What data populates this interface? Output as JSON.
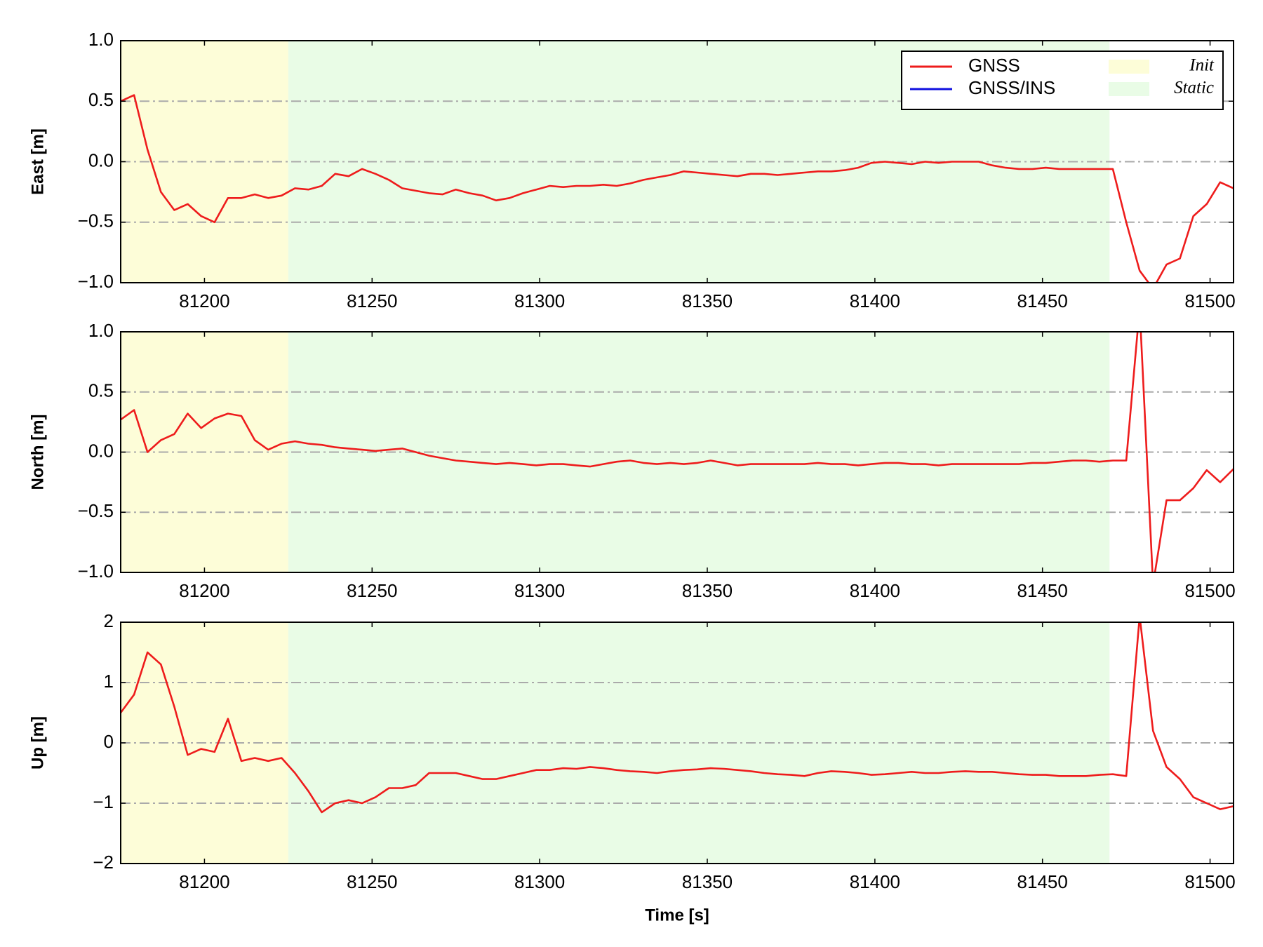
{
  "x": [
    81175,
    81179,
    81183,
    81187,
    81191,
    81195,
    81199,
    81203,
    81207,
    81211,
    81215,
    81219,
    81223,
    81227,
    81231,
    81235,
    81239,
    81243,
    81247,
    81251,
    81255,
    81259,
    81263,
    81267,
    81271,
    81275,
    81279,
    81283,
    81287,
    81291,
    81295,
    81299,
    81303,
    81307,
    81311,
    81315,
    81319,
    81323,
    81327,
    81331,
    81335,
    81339,
    81343,
    81347,
    81351,
    81355,
    81359,
    81363,
    81367,
    81371,
    81375,
    81379,
    81383,
    81387,
    81391,
    81395,
    81399,
    81403,
    81407,
    81411,
    81415,
    81419,
    81423,
    81427,
    81431,
    81435,
    81439,
    81443,
    81447,
    81451,
    81455,
    81459,
    81463,
    81467,
    81471,
    81475,
    81479,
    81483,
    81487,
    81491,
    81495,
    81499,
    81503,
    81507
  ],
  "xlabel": "Time [s]",
  "legend_lines": [
    {
      "name": "GNSS",
      "color": "#ee1c1c"
    },
    {
      "name": "GNSS/INS",
      "color": "#1010e0"
    }
  ],
  "regions": [
    {
      "name": "Init",
      "color": "#fdfdd8",
      "xrange": [
        81175,
        81225
      ]
    },
    {
      "name": "Static",
      "color": "#e9fce6",
      "xrange": [
        81225,
        81470
      ]
    }
  ],
  "chart_data": [
    {
      "type": "line",
      "ylabel": "East [m]",
      "xlim": [
        81175,
        81507
      ],
      "xticks": [
        81200,
        81250,
        81300,
        81350,
        81400,
        81450,
        81500
      ],
      "ylim": [
        -1,
        1
      ],
      "yticks": [
        {
          "value": -1,
          "label": "−1.0"
        },
        {
          "value": -0.5,
          "label": "−0.5"
        },
        {
          "value": 0,
          "label": "0.0"
        },
        {
          "value": 0.5,
          "label": "0.5"
        },
        {
          "value": 1,
          "label": "1.0"
        }
      ],
      "grid": true,
      "values": [
        0.5,
        0.55,
        0.1,
        -0.25,
        -0.4,
        -0.35,
        -0.45,
        -0.5,
        -0.3,
        -0.3,
        -0.27,
        -0.3,
        -0.28,
        -0.22,
        -0.23,
        -0.2,
        -0.1,
        -0.12,
        -0.06,
        -0.1,
        -0.15,
        -0.22,
        -0.24,
        -0.26,
        -0.27,
        -0.23,
        -0.26,
        -0.28,
        -0.32,
        -0.3,
        -0.26,
        -0.23,
        -0.2,
        -0.21,
        -0.2,
        -0.2,
        -0.19,
        -0.2,
        -0.18,
        -0.15,
        -0.13,
        -0.11,
        -0.08,
        -0.09,
        -0.1,
        -0.11,
        -0.12,
        -0.1,
        -0.1,
        -0.11,
        -0.1,
        -0.09,
        -0.08,
        -0.08,
        -0.07,
        -0.05,
        -0.01,
        0.0,
        -0.01,
        -0.02,
        0.0,
        -0.01,
        0.0,
        0.0,
        0.0,
        -0.03,
        -0.05,
        -0.06,
        -0.06,
        -0.05,
        -0.06,
        -0.06,
        -0.06,
        -0.06,
        -0.06,
        -0.5,
        -0.9,
        -1.05,
        -0.85,
        -0.8,
        -0.45,
        -0.35,
        -0.17,
        -0.22
      ]
    },
    {
      "type": "line",
      "ylabel": "North [m]",
      "xlim": [
        81175,
        81507
      ],
      "xticks": [
        81200,
        81250,
        81300,
        81350,
        81400,
        81450,
        81500
      ],
      "ylim": [
        -1,
        1
      ],
      "yticks": [
        {
          "value": -1,
          "label": "−1.0"
        },
        {
          "value": -0.5,
          "label": "−0.5"
        },
        {
          "value": 0,
          "label": "0.0"
        },
        {
          "value": 0.5,
          "label": "0.5"
        },
        {
          "value": 1,
          "label": "1.0"
        }
      ],
      "grid": true,
      "values": [
        0.27,
        0.35,
        0.0,
        0.1,
        0.15,
        0.32,
        0.2,
        0.28,
        0.32,
        0.3,
        0.1,
        0.02,
        0.07,
        0.09,
        0.07,
        0.06,
        0.04,
        0.03,
        0.02,
        0.01,
        0.02,
        0.03,
        0.0,
        -0.03,
        -0.05,
        -0.07,
        -0.08,
        -0.09,
        -0.1,
        -0.09,
        -0.1,
        -0.11,
        -0.1,
        -0.1,
        -0.11,
        -0.12,
        -0.1,
        -0.08,
        -0.07,
        -0.09,
        -0.1,
        -0.09,
        -0.1,
        -0.09,
        -0.07,
        -0.09,
        -0.11,
        -0.1,
        -0.1,
        -0.1,
        -0.1,
        -0.1,
        -0.09,
        -0.1,
        -0.1,
        -0.11,
        -0.1,
        -0.09,
        -0.09,
        -0.1,
        -0.1,
        -0.11,
        -0.1,
        -0.1,
        -0.1,
        -0.1,
        -0.1,
        -0.1,
        -0.09,
        -0.09,
        -0.08,
        -0.07,
        -0.07,
        -0.08,
        -0.07,
        -0.07,
        1.2,
        -1.1,
        -0.4,
        -0.4,
        -0.3,
        -0.15,
        -0.25,
        -0.14
      ]
    },
    {
      "type": "line",
      "ylabel": "Up [m]",
      "xlim": [
        81175,
        81507
      ],
      "xticks": [
        81200,
        81250,
        81300,
        81350,
        81400,
        81450,
        81500
      ],
      "ylim": [
        -2,
        2
      ],
      "yticks": [
        {
          "value": -2,
          "label": "−2"
        },
        {
          "value": -1,
          "label": "−1"
        },
        0,
        1,
        2
      ],
      "grid": true,
      "values": [
        0.5,
        0.8,
        1.5,
        1.3,
        0.6,
        -0.2,
        -0.1,
        -0.15,
        0.4,
        -0.3,
        -0.25,
        -0.3,
        -0.25,
        -0.5,
        -0.8,
        -1.15,
        -1.0,
        -0.95,
        -1.0,
        -0.9,
        -0.75,
        -0.75,
        -0.7,
        -0.5,
        -0.5,
        -0.5,
        -0.55,
        -0.6,
        -0.6,
        -0.55,
        -0.5,
        -0.45,
        -0.45,
        -0.42,
        -0.43,
        -0.4,
        -0.42,
        -0.45,
        -0.47,
        -0.48,
        -0.5,
        -0.47,
        -0.45,
        -0.44,
        -0.42,
        -0.43,
        -0.45,
        -0.47,
        -0.5,
        -0.52,
        -0.53,
        -0.55,
        -0.5,
        -0.47,
        -0.48,
        -0.5,
        -0.53,
        -0.52,
        -0.5,
        -0.48,
        -0.5,
        -0.5,
        -0.48,
        -0.47,
        -0.48,
        -0.48,
        -0.5,
        -0.52,
        -0.53,
        -0.53,
        -0.55,
        -0.55,
        -0.55,
        -0.53,
        -0.52,
        -0.55,
        2.1,
        0.2,
        -0.4,
        -0.6,
        -0.9,
        -1.0,
        -1.1,
        -1.05
      ]
    }
  ]
}
